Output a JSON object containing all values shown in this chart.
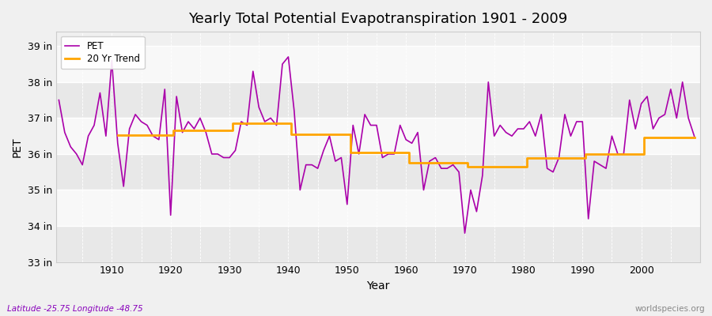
{
  "title": "Yearly Total Potential Evapotranspiration 1901 - 2009",
  "xlabel": "Year",
  "ylabel": "PET",
  "subtitle": "Latitude -25.75 Longitude -48.75",
  "watermark": "worldspecies.org",
  "legend_labels": [
    "PET",
    "20 Yr Trend"
  ],
  "pet_color": "#AA00AA",
  "trend_color": "#FFA500",
  "background_color": "#F0F0F0",
  "plot_bg_color": "#F0F0F0",
  "band_color1": "#E8E8E8",
  "band_color2": "#F8F8F8",
  "ylim": [
    33.0,
    39.4
  ],
  "yticks": [
    33,
    34,
    35,
    36,
    37,
    38,
    39
  ],
  "ytick_labels": [
    "33 in",
    "34 in",
    "35 in",
    "36 in",
    "37 in",
    "38 in",
    "39 in"
  ],
  "xlim": [
    1900.5,
    2010
  ],
  "years": [
    1901,
    1902,
    1903,
    1904,
    1905,
    1906,
    1907,
    1908,
    1909,
    1910,
    1911,
    1912,
    1913,
    1914,
    1915,
    1916,
    1917,
    1918,
    1919,
    1920,
    1921,
    1922,
    1923,
    1924,
    1925,
    1926,
    1927,
    1928,
    1929,
    1930,
    1931,
    1932,
    1933,
    1934,
    1935,
    1936,
    1937,
    1938,
    1939,
    1940,
    1941,
    1942,
    1943,
    1944,
    1945,
    1946,
    1947,
    1948,
    1949,
    1950,
    1951,
    1952,
    1953,
    1954,
    1955,
    1956,
    1957,
    1958,
    1959,
    1960,
    1961,
    1962,
    1963,
    1964,
    1965,
    1966,
    1967,
    1968,
    1969,
    1970,
    1971,
    1972,
    1973,
    1974,
    1975,
    1976,
    1977,
    1978,
    1979,
    1980,
    1981,
    1982,
    1983,
    1984,
    1985,
    1986,
    1987,
    1988,
    1989,
    1990,
    1991,
    1992,
    1993,
    1994,
    1995,
    1996,
    1997,
    1998,
    1999,
    2000,
    2001,
    2002,
    2003,
    2004,
    2005,
    2006,
    2007,
    2008,
    2009
  ],
  "pet_values": [
    37.5,
    36.6,
    36.2,
    36.0,
    35.7,
    36.5,
    36.8,
    37.7,
    36.5,
    38.6,
    36.3,
    35.1,
    36.7,
    37.1,
    36.9,
    36.8,
    36.5,
    36.4,
    37.8,
    34.3,
    37.6,
    36.6,
    36.9,
    36.7,
    37.0,
    36.6,
    36.0,
    36.0,
    35.9,
    35.9,
    36.1,
    36.9,
    36.8,
    38.3,
    37.3,
    36.9,
    37.0,
    36.8,
    38.5,
    38.7,
    37.2,
    35.0,
    35.7,
    35.7,
    35.6,
    36.1,
    36.5,
    35.8,
    35.9,
    34.6,
    36.8,
    36.0,
    37.1,
    36.8,
    36.8,
    35.9,
    36.0,
    36.0,
    36.8,
    36.4,
    36.3,
    36.6,
    35.0,
    35.8,
    35.9,
    35.6,
    35.6,
    35.7,
    35.5,
    33.8,
    35.0,
    34.4,
    35.4,
    38.0,
    36.5,
    36.8,
    36.6,
    36.5,
    36.7,
    36.7,
    36.9,
    36.5,
    37.1,
    35.6,
    35.5,
    35.9,
    37.1,
    36.5,
    36.9,
    36.9,
    34.2,
    35.8,
    35.7,
    35.6,
    36.5,
    36.0,
    36.0,
    37.5,
    36.7,
    37.4,
    37.6,
    36.7,
    37.0,
    37.1,
    37.8,
    37.0,
    38.0,
    37.0,
    36.5
  ],
  "trend_values": [
    null,
    null,
    null,
    null,
    null,
    null,
    null,
    null,
    null,
    null,
    36.52,
    36.52,
    36.52,
    36.52,
    36.52,
    36.52,
    36.52,
    36.52,
    36.52,
    36.52,
    36.65,
    36.65,
    36.65,
    36.65,
    36.65,
    36.65,
    36.65,
    36.65,
    36.65,
    36.65,
    36.85,
    36.85,
    36.85,
    36.85,
    36.85,
    36.85,
    36.85,
    36.85,
    36.85,
    36.85,
    36.55,
    36.55,
    36.55,
    36.55,
    36.55,
    36.55,
    36.55,
    36.55,
    36.55,
    36.55,
    36.05,
    36.05,
    36.05,
    36.05,
    36.05,
    36.05,
    36.05,
    36.05,
    36.05,
    36.05,
    35.75,
    35.75,
    35.75,
    35.75,
    35.75,
    35.75,
    35.75,
    35.75,
    35.75,
    35.75,
    35.65,
    35.65,
    35.65,
    35.65,
    35.65,
    35.65,
    35.65,
    35.65,
    35.65,
    35.65,
    35.9,
    35.9,
    35.9,
    35.9,
    35.9,
    35.9,
    35.9,
    35.9,
    35.9,
    35.9,
    36.0,
    36.0,
    36.0,
    36.0,
    36.0,
    36.0,
    36.0,
    36.0,
    36.0,
    36.0,
    36.45,
    36.45,
    36.45,
    36.45,
    36.45,
    36.45,
    36.45,
    36.45,
    36.45
  ]
}
